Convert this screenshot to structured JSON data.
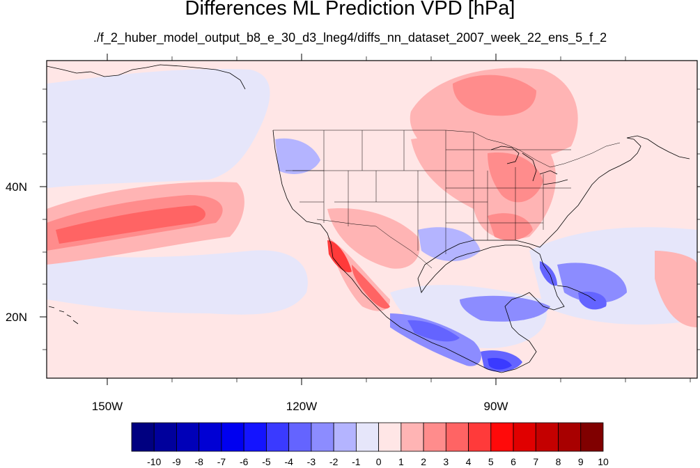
{
  "title": "Differences ML Prediction VPD [hPa]",
  "subtitle": "./f_2_huber_model_output_b8_e_30_d3_lneg4/diffs_nn_dataset_2007_week_22_ens_5_f_2",
  "axes": {
    "x_ticks": [
      "150W",
      "120W",
      "90W"
    ],
    "y_ticks": [
      "40N",
      "20N"
    ]
  },
  "colorbar": {
    "labels": [
      "-10",
      "-9",
      "-8",
      "-7",
      "-6",
      "-5",
      "-4",
      "-3",
      "-2",
      "-1",
      "0",
      "1",
      "2",
      "3",
      "4",
      "5",
      "6",
      "7",
      "8",
      "9",
      "10"
    ],
    "colors": [
      "#000080",
      "#00009c",
      "#0000b8",
      "#0000d4",
      "#0000f0",
      "#1414ff",
      "#3a3aff",
      "#6464ff",
      "#8c8cff",
      "#b4b4ff",
      "#e6e6fa",
      "#ffe6e6",
      "#ffb4b4",
      "#ff8c8c",
      "#ff6464",
      "#ff3a3a",
      "#ff0a0a",
      "#e00000",
      "#c40000",
      "#a80000",
      "#800000"
    ]
  }
}
